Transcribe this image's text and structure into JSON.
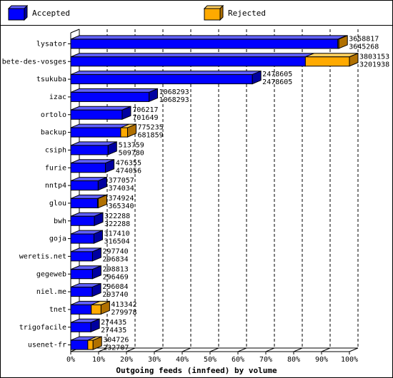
{
  "chart_data": {
    "type": "bar",
    "orientation": "horizontal",
    "stacked": true,
    "style": "3d",
    "title": "",
    "xlabel": "Outgoing feeds (innfeed) by volume",
    "ylabel": "",
    "xlim": [
      0,
      100
    ],
    "x_ticks": [
      "0%",
      "10%",
      "20%",
      "30%",
      "40%",
      "50%",
      "60%",
      "70%",
      "80%",
      "90%",
      "100%"
    ],
    "legend_position": "top",
    "series": [
      {
        "name": "Accepted",
        "color": "#0000ff"
      },
      {
        "name": "Rejected",
        "color": "#ffaa00"
      }
    ],
    "categories": [
      "lysator",
      "bete-des-vosges",
      "tsukuba",
      "izac",
      "ortolo",
      "backup",
      "csiph",
      "furie",
      "nntp4",
      "glou",
      "bwh",
      "goja",
      "weretis.net",
      "gegeweb",
      "niel.me",
      "tnet",
      "trigofacile",
      "usenet-fr"
    ],
    "offered": [
      3658817,
      3803153,
      2478605,
      1068293,
      706217,
      775235,
      513759,
      476355,
      377057,
      374924,
      322288,
      317410,
      297740,
      298813,
      296084,
      413342,
      274435,
      304726
    ],
    "accepted": [
      3645268,
      3201938,
      2478605,
      1068293,
      701649,
      681859,
      509780,
      474056,
      374034,
      365340,
      322288,
      316504,
      296834,
      296469,
      293740,
      279978,
      274435,
      232707
    ]
  }
}
